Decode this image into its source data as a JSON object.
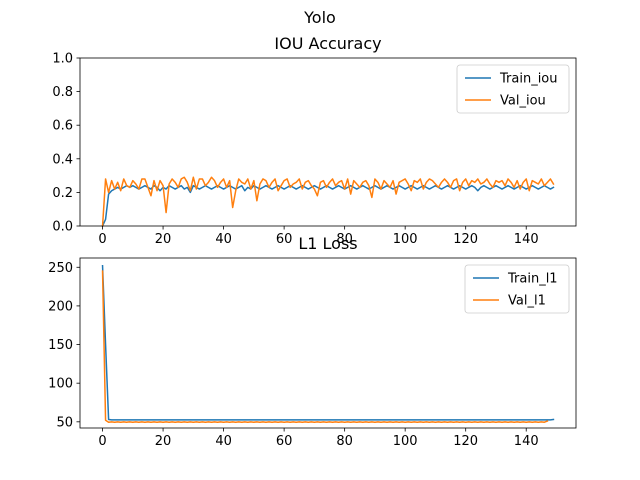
{
  "figure": {
    "suptitle": "Yolo"
  },
  "chart_data": [
    {
      "type": "line",
      "title": "IOU Accuracy",
      "xlabel": "",
      "ylabel": "",
      "xlim": [
        -7.45,
        156.45
      ],
      "ylim": [
        0,
        1
      ],
      "xticks": [
        0,
        20,
        40,
        60,
        80,
        100,
        120,
        140
      ],
      "xtick_labels": [
        "0",
        "20",
        "40",
        "60",
        "80",
        "100",
        "120",
        "140"
      ],
      "yticks": [
        0,
        0.2,
        0.4,
        0.6,
        0.8,
        1.0
      ],
      "ytick_labels": [
        "0.0",
        "0.2",
        "0.4",
        "0.6",
        "0.8",
        "1.0"
      ],
      "legend_position": "top-right",
      "grid": false,
      "series": [
        {
          "name": "Train_iou",
          "color": "#1f77b4",
          "values": [
            0.0,
            0.04,
            0.19,
            0.21,
            0.22,
            0.23,
            0.22,
            0.23,
            0.24,
            0.23,
            0.24,
            0.23,
            0.22,
            0.23,
            0.24,
            0.23,
            0.22,
            0.24,
            0.23,
            0.21,
            0.23,
            0.22,
            0.24,
            0.23,
            0.22,
            0.23,
            0.24,
            0.22,
            0.23,
            0.2,
            0.24,
            0.23,
            0.22,
            0.23,
            0.24,
            0.23,
            0.22,
            0.23,
            0.24,
            0.23,
            0.22,
            0.23,
            0.24,
            0.23,
            0.22,
            0.23,
            0.24,
            0.21,
            0.23,
            0.22,
            0.24,
            0.23,
            0.22,
            0.23,
            0.24,
            0.23,
            0.22,
            0.23,
            0.24,
            0.23,
            0.22,
            0.23,
            0.24,
            0.23,
            0.22,
            0.23,
            0.24,
            0.23,
            0.22,
            0.23,
            0.24,
            0.23,
            0.22,
            0.23,
            0.24,
            0.23,
            0.22,
            0.23,
            0.24,
            0.23,
            0.22,
            0.23,
            0.24,
            0.23,
            0.22,
            0.23,
            0.24,
            0.23,
            0.22,
            0.23,
            0.24,
            0.23,
            0.22,
            0.23,
            0.24,
            0.23,
            0.22,
            0.23,
            0.24,
            0.23,
            0.22,
            0.23,
            0.24,
            0.23,
            0.22,
            0.23,
            0.24,
            0.23,
            0.22,
            0.23,
            0.24,
            0.23,
            0.22,
            0.23,
            0.24,
            0.23,
            0.22,
            0.23,
            0.24,
            0.23,
            0.22,
            0.23,
            0.24,
            0.23,
            0.21,
            0.23,
            0.24,
            0.23,
            0.22,
            0.23,
            0.24,
            0.23,
            0.22,
            0.23,
            0.24,
            0.23,
            0.22,
            0.23,
            0.24,
            0.23,
            0.22,
            0.23,
            0.24,
            0.23,
            0.22,
            0.23,
            0.24,
            0.23,
            0.22,
            0.23
          ]
        },
        {
          "name": "Val_iou",
          "color": "#ff7f0e",
          "values": [
            0.0,
            0.28,
            0.2,
            0.27,
            0.22,
            0.26,
            0.21,
            0.28,
            0.24,
            0.23,
            0.27,
            0.25,
            0.22,
            0.28,
            0.28,
            0.23,
            0.18,
            0.27,
            0.21,
            0.27,
            0.24,
            0.08,
            0.25,
            0.28,
            0.26,
            0.23,
            0.28,
            0.29,
            0.26,
            0.21,
            0.29,
            0.22,
            0.28,
            0.28,
            0.24,
            0.26,
            0.29,
            0.27,
            0.23,
            0.26,
            0.28,
            0.23,
            0.27,
            0.11,
            0.21,
            0.28,
            0.26,
            0.25,
            0.28,
            0.22,
            0.27,
            0.15,
            0.25,
            0.28,
            0.27,
            0.23,
            0.26,
            0.28,
            0.21,
            0.24,
            0.27,
            0.28,
            0.23,
            0.25,
            0.26,
            0.28,
            0.22,
            0.26,
            0.27,
            0.24,
            0.22,
            0.18,
            0.26,
            0.27,
            0.23,
            0.26,
            0.28,
            0.24,
            0.26,
            0.27,
            0.22,
            0.28,
            0.19,
            0.27,
            0.25,
            0.23,
            0.26,
            0.27,
            0.24,
            0.17,
            0.28,
            0.26,
            0.22,
            0.27,
            0.25,
            0.23,
            0.27,
            0.19,
            0.26,
            0.27,
            0.28,
            0.25,
            0.21,
            0.27,
            0.26,
            0.28,
            0.22,
            0.26,
            0.28,
            0.27,
            0.25,
            0.23,
            0.26,
            0.28,
            0.26,
            0.23,
            0.27,
            0.28,
            0.21,
            0.26,
            0.28,
            0.24,
            0.27,
            0.26,
            0.28,
            0.25,
            0.26,
            0.28,
            0.25,
            0.23,
            0.27,
            0.26,
            0.27,
            0.24,
            0.28,
            0.26,
            0.23,
            0.27,
            0.22,
            0.26,
            0.28,
            0.21,
            0.27,
            0.26,
            0.25,
            0.28,
            0.24,
            0.26,
            0.28,
            0.25
          ]
        }
      ]
    },
    {
      "type": "line",
      "title": "L1 Loss",
      "xlabel": "",
      "ylabel": "",
      "xlim": [
        -7.45,
        156.45
      ],
      "ylim": [
        42,
        262
      ],
      "xticks": [
        0,
        20,
        40,
        60,
        80,
        100,
        120,
        140
      ],
      "xtick_labels": [
        "0",
        "20",
        "40",
        "60",
        "80",
        "100",
        "120",
        "140"
      ],
      "yticks": [
        50,
        100,
        150,
        200,
        250
      ],
      "ytick_labels": [
        "50",
        "100",
        "150",
        "200",
        "250"
      ],
      "legend_position": "top-right",
      "grid": false,
      "series": [
        {
          "name": "Train_l1",
          "color": "#1f77b4",
          "values": [
            252,
            150,
            53,
            52.5,
            52.5,
            52.5,
            52.5,
            52.5,
            52.5,
            52.5,
            52.5,
            52.5,
            52.5,
            52.5,
            52.5,
            52.5,
            52.5,
            52.5,
            52.5,
            52.5,
            52.5,
            52.5,
            52.5,
            52.5,
            52.5,
            52.5,
            52.5,
            52.5,
            52.5,
            52.5,
            52.5,
            52.5,
            52.5,
            52.5,
            52.5,
            52.5,
            52.5,
            52.5,
            52.5,
            52.5,
            52.5,
            52.5,
            52.5,
            52.5,
            52.5,
            52.5,
            52.5,
            52.5,
            52.5,
            52.5,
            52.5,
            52.5,
            52.5,
            52.5,
            52.5,
            52.5,
            52.5,
            52.5,
            52.5,
            52.5,
            52.5,
            52.5,
            52.5,
            52.5,
            52.5,
            52.5,
            52.5,
            52.5,
            52.5,
            52.5,
            52.5,
            52.5,
            52.5,
            52.5,
            52.5,
            52.5,
            52.5,
            52.5,
            52.5,
            52.5,
            52.5,
            52.5,
            52.5,
            52.5,
            52.5,
            52.5,
            52.5,
            52.5,
            52.5,
            52.5,
            52.5,
            52.5,
            52.5,
            52.5,
            52.5,
            52.5,
            52.5,
            52.5,
            52.5,
            52.5,
            52.5,
            52.5,
            52.5,
            52.5,
            52.5,
            52.5,
            52.5,
            52.5,
            52.5,
            52.5,
            52.5,
            52.5,
            52.5,
            52.5,
            52.5,
            52.5,
            52.5,
            52.5,
            52.5,
            52.5,
            52.5,
            52.5,
            52.5,
            52.5,
            52.5,
            52.5,
            52.5,
            52.5,
            52.5,
            52.5,
            52.5,
            52.5,
            52.5,
            52.5,
            52.5,
            52.5,
            52.5,
            52.5,
            52.5,
            52.5,
            52.5,
            52.5,
            52.5,
            52.5,
            52.5,
            52.5,
            52.5,
            52.5,
            52.5,
            53
          ]
        },
        {
          "name": "Val_l1",
          "color": "#ff7f0e",
          "values": [
            245,
            52,
            49.5,
            50,
            49.5,
            50,
            49.5,
            50,
            49.5,
            50,
            49.5,
            50,
            49.5,
            50,
            49.5,
            50,
            49.5,
            50,
            49.5,
            50,
            49.5,
            50,
            49.5,
            50,
            49.5,
            50,
            49.5,
            50,
            49.5,
            50,
            49.5,
            50,
            49.5,
            50,
            49.5,
            50,
            49.5,
            50,
            49.5,
            50,
            49.5,
            50,
            49.5,
            50,
            49.5,
            50,
            49.5,
            50,
            49.5,
            50,
            49.5,
            50,
            49.5,
            50,
            49.5,
            50,
            49.5,
            50,
            49.5,
            50,
            49.5,
            50,
            49.5,
            50,
            49.5,
            50,
            49.5,
            50,
            49.5,
            50,
            49.5,
            50,
            49.5,
            50,
            49.5,
            50,
            49.5,
            50,
            49.5,
            50,
            49.5,
            50,
            49.5,
            50,
            49.5,
            50,
            49.5,
            50,
            49.5,
            50,
            49.5,
            50,
            49.5,
            50,
            49.5,
            50,
            49.5,
            50,
            49.5,
            50,
            49.5,
            50,
            49.5,
            50,
            49.5,
            50,
            49.5,
            50,
            49.5,
            50,
            49.5,
            50,
            49.5,
            50,
            49.5,
            50,
            49.5,
            50,
            49.5,
            50,
            49.5,
            50,
            49.5,
            50,
            49.5,
            50,
            49.5,
            50,
            49.5,
            50,
            49.5,
            50,
            49.5,
            50,
            49.5,
            50,
            49.5,
            50,
            49.5,
            50,
            49.5,
            50,
            49.5,
            50,
            49.5,
            50,
            49.5,
            51
          ]
        }
      ]
    }
  ]
}
